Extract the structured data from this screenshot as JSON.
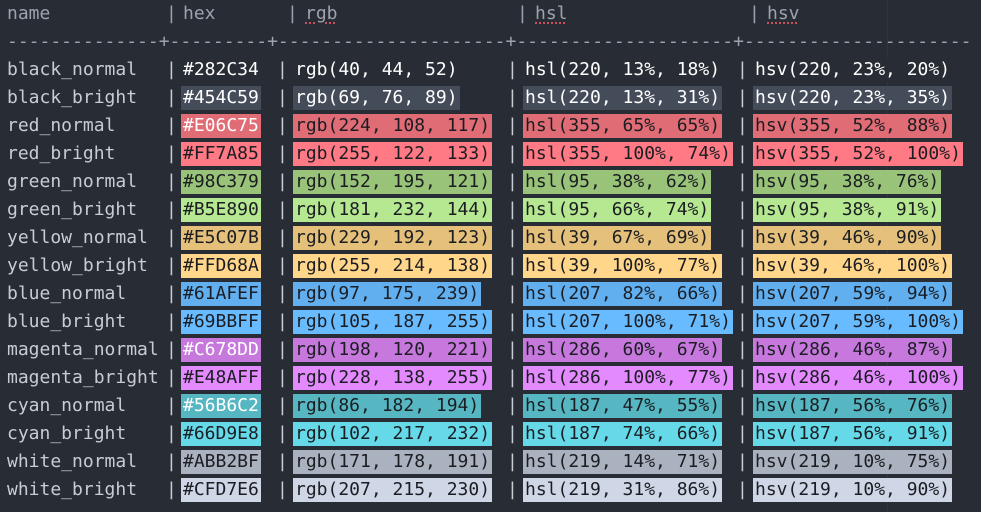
{
  "table": {
    "columns": [
      "name",
      "hex",
      "rgb",
      "hsl",
      "hsv"
    ],
    "divider": "|",
    "separator": "--------------+---------+---------------------+--------------------+---------------------",
    "rows": [
      [
        "black_normal",
        "#282C34",
        "rgb(40, 44, 52)",
        "hsl(220, 13%, 18%)",
        "hsv(220, 23%, 20%)"
      ],
      [
        "black_bright",
        "#454C59",
        "rgb(69, 76, 89)",
        "hsl(220, 13%, 31%)",
        "hsv(220, 23%, 35%)"
      ],
      [
        "red_normal",
        "#E06C75",
        "rgb(224, 108, 117)",
        "hsl(355, 65%, 65%)",
        "hsv(355, 52%, 88%)"
      ],
      [
        "red_bright",
        "#FF7A85",
        "rgb(255, 122, 133)",
        "hsl(355, 100%, 74%)",
        "hsv(355, 52%, 100%)"
      ],
      [
        "green_normal",
        "#98C379",
        "rgb(152, 195, 121)",
        "hsl(95, 38%, 62%)",
        "hsv(95, 38%, 76%)"
      ],
      [
        "green_bright",
        "#B5E890",
        "rgb(181, 232, 144)",
        "hsl(95, 66%, 74%)",
        "hsv(95, 38%, 91%)"
      ],
      [
        "yellow_normal",
        "#E5C07B",
        "rgb(229, 192, 123)",
        "hsl(39, 67%, 69%)",
        "hsv(39, 46%, 90%)"
      ],
      [
        "yellow_bright",
        "#FFD68A",
        "rgb(255, 214, 138)",
        "hsl(39, 100%, 77%)",
        "hsv(39, 46%, 100%)"
      ],
      [
        "blue_normal",
        "#61AFEF",
        "rgb(97, 175, 239)",
        "hsl(207, 82%, 66%)",
        "hsv(207, 59%, 94%)"
      ],
      [
        "blue_bright",
        "#69BBFF",
        "rgb(105, 187, 255)",
        "hsl(207, 100%, 71%)",
        "hsv(207, 59%, 100%)"
      ],
      [
        "magenta_normal",
        "#C678DD",
        "rgb(198, 120, 221)",
        "hsl(286, 60%, 67%)",
        "hsv(286, 46%, 87%)"
      ],
      [
        "magenta_bright",
        "#E48AFF",
        "rgb(228, 138, 255)",
        "hsl(286, 100%, 77%)",
        "hsv(286, 46%, 100%)"
      ],
      [
        "cyan_normal",
        "#56B6C2",
        "rgb(86, 182, 194)",
        "hsl(187, 47%, 55%)",
        "hsv(187, 56%, 76%)"
      ],
      [
        "cyan_bright",
        "#66D9E8",
        "rgb(102, 217, 232)",
        "hsl(187, 74%, 66%)",
        "hsv(187, 56%, 91%)"
      ],
      [
        "white_normal",
        "#ABB2BF",
        "rgb(171, 178, 191)",
        "hsl(219, 14%, 71%)",
        "hsv(219, 10%, 75%)"
      ],
      [
        "white_bright",
        "#CFD7E6",
        "rgb(207, 215, 230)",
        "hsl(219, 31%, 86%)",
        "hsv(219, 10%, 90%)"
      ]
    ]
  }
}
